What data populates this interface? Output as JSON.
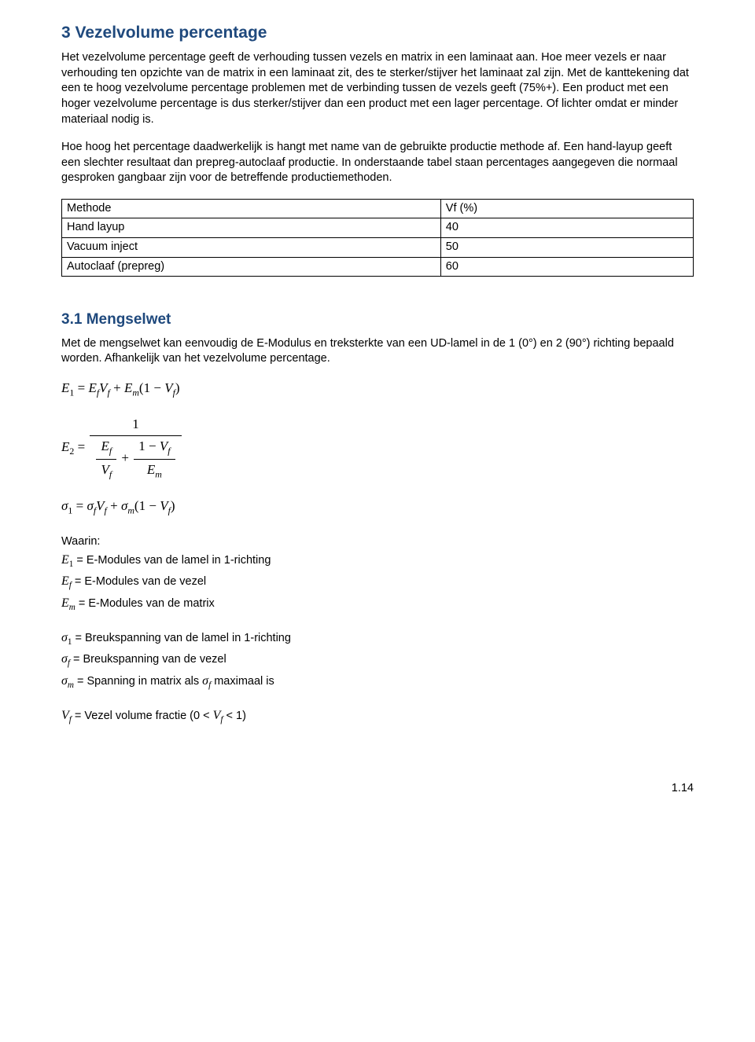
{
  "heading": "3 Vezelvolume percentage",
  "para1": "Het vezelvolume percentage geeft de verhouding tussen vezels en matrix in een laminaat aan. Hoe meer vezels er naar verhouding ten opzichte van de matrix in een laminaat zit, des te sterker/stijver het laminaat zal zijn. Met de kanttekening dat een te hoog vezelvolume percentage problemen met de verbinding tussen de vezels geeft (75%+). Een product met een hoger vezelvolume percentage is dus sterker/stijver dan een product met een lager percentage. Of lichter omdat er minder materiaal nodig is.",
  "para2": "Hoe hoog het percentage daadwerkelijk is hangt met name van de gebruikte productie methode af. Een hand-layup geeft een slechter resultaat dan prepreg-autoclaaf productie. In onderstaande tabel staan percentages aangegeven die normaal gesproken gangbaar zijn voor de betreffende productiemethoden.",
  "table": {
    "header": {
      "method": "Methode",
      "vf": "Vf (%)"
    },
    "rows": [
      {
        "method": "Hand layup",
        "vf": "40"
      },
      {
        "method": "Vacuum inject",
        "vf": "50"
      },
      {
        "method": "Autoclaaf (prepreg)",
        "vf": "60"
      }
    ]
  },
  "subheading": "3.1 Mengselwet",
  "para3": "Met de mengselwet kan eenvoudig de E-Modulus en treksterkte van een UD-lamel in de 1 (0°) en 2 (90°) richting bepaald worden. Afhankelijk van het vezelvolume percentage.",
  "where_title": "Waarin:",
  "where": {
    "e1": "E-Modules van de lamel in 1-richting",
    "ef": "E-Modules van de vezel",
    "em": "E-Modules van de matrix",
    "s1": "Breukspanning van de lamel in 1-richting",
    "sf": "Breukspanning van de vezel",
    "sm_prefix": "Spanning in matrix als ",
    "sm_suffix": " maximaal is",
    "vf_prefix": "Vezel volume fractie (0 < ",
    "vf_suffix": " < 1)"
  },
  "page_number": "1.14"
}
